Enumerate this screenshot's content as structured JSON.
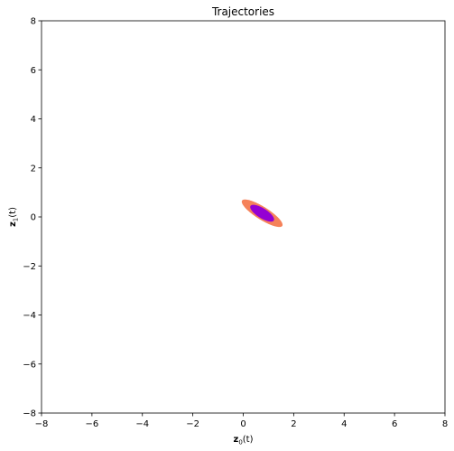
{
  "chart_data": {
    "type": "scatter",
    "title": "Trajectories",
    "xlabel": {
      "var": "z",
      "sub": "0",
      "arg": "(t)"
    },
    "ylabel": {
      "var": "z",
      "sub": "1",
      "arg": "(t)"
    },
    "xlim": [
      -8,
      8
    ],
    "ylim": [
      -8,
      8
    ],
    "xticks": [
      -8,
      -6,
      -4,
      -2,
      0,
      2,
      4,
      6,
      8
    ],
    "yticks": [
      -8,
      -6,
      -4,
      -2,
      0,
      2,
      4,
      6,
      8
    ],
    "tick_labels_x": [
      "−8",
      "−6",
      "−4",
      "−2",
      "0",
      "2",
      "4",
      "6",
      "8"
    ],
    "tick_labels_y": [
      "−8",
      "−6",
      "−4",
      "−2",
      "0",
      "2",
      "4",
      "6",
      "8"
    ],
    "grid": false,
    "series": [
      {
        "name": "outer trajectory band",
        "color": "#f5825a",
        "shape": "ellipse",
        "center": [
          0.75,
          0.15
        ],
        "semi_axes": [
          0.95,
          0.26
        ],
        "angle_deg": -33
      },
      {
        "name": "inner trajectory band",
        "color": "#9400d3",
        "shape": "ellipse",
        "center": [
          0.75,
          0.15
        ],
        "semi_axes": [
          0.55,
          0.2
        ],
        "angle_deg": -33
      }
    ]
  }
}
